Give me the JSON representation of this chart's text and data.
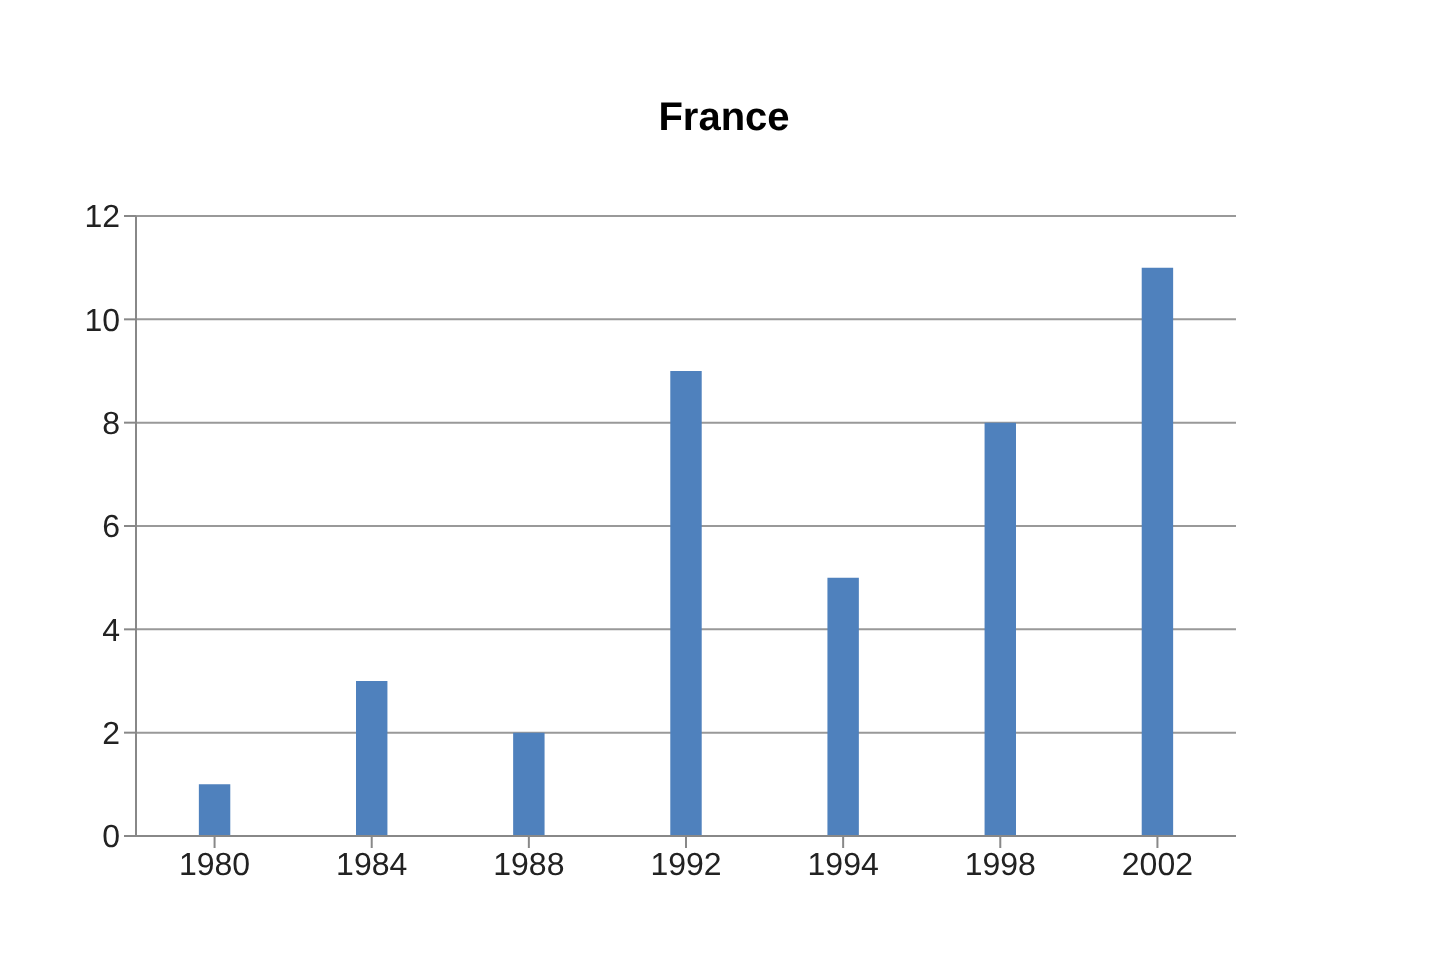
{
  "chart_data": {
    "type": "bar",
    "title": "France",
    "categories": [
      "1980",
      "1984",
      "1988",
      "1992",
      "1994",
      "1998",
      "2002"
    ],
    "values": [
      1,
      3,
      2,
      9,
      5,
      8,
      11
    ],
    "color": "#4f81bd",
    "ylim": [
      0,
      12
    ],
    "yticks": [
      0,
      2,
      4,
      6,
      8,
      10,
      12
    ],
    "grid": "y",
    "legend": false
  }
}
